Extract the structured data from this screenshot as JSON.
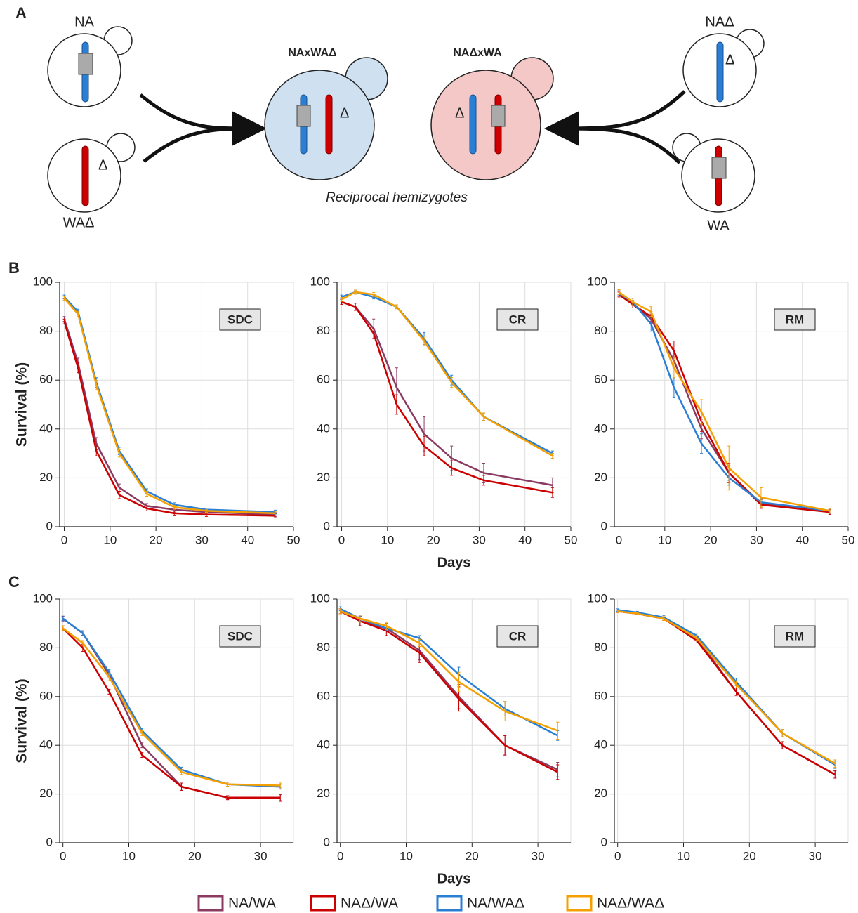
{
  "panels": {
    "b": "B",
    "c": "C"
  },
  "diagram": {
    "label": "A",
    "left_cells": [
      {
        "label": "NA"
      },
      {
        "label": "WAΔ",
        "mark": "Δ"
      }
    ],
    "hybrids": [
      {
        "label": "NAxWAΔ",
        "mark": "Δ"
      },
      {
        "label": "NAΔxWA",
        "mark": "Δ"
      }
    ],
    "right_cells": [
      {
        "label": "NAΔ",
        "mark": "Δ"
      },
      {
        "label": "WA"
      }
    ],
    "caption": "Reciprocal hemizygotes"
  },
  "legend": [
    {
      "name": "NA/WA",
      "color": "#8b3a62"
    },
    {
      "name": "NAΔ/WA",
      "color": "#cc0000"
    },
    {
      "name": "NA/WAΔ",
      "color": "#2a7fd4"
    },
    {
      "name": "NAΔ/WAΔ",
      "color": "#f5a000"
    }
  ],
  "chart_data": [
    {
      "type": "line",
      "condition": "SDC",
      "ylabel": "Survival (%)",
      "x": [
        0,
        3,
        7,
        12,
        18,
        24,
        31,
        46
      ],
      "xlim": [
        -1,
        50
      ],
      "xticks": [
        0,
        10,
        20,
        30,
        40,
        50
      ],
      "ylim": [
        0,
        100
      ],
      "yticks": [
        0,
        20,
        40,
        60,
        80,
        100
      ],
      "grid": true,
      "series": [
        {
          "values": [
            85,
            67,
            34,
            16,
            8.5,
            7,
            6,
            5
          ],
          "errors": [
            1,
            2,
            2.5,
            1.5,
            1,
            1,
            0.8,
            0.8
          ]
        },
        {
          "values": [
            84,
            65,
            31,
            13,
            7.5,
            5.5,
            5,
            4.5
          ],
          "errors": [
            1,
            2,
            2,
            1.5,
            1,
            1,
            0.8,
            0.8
          ]
        },
        {
          "values": [
            94,
            88,
            59,
            31,
            14.5,
            9,
            7,
            6
          ],
          "errors": [
            0.8,
            1,
            2,
            1.5,
            1,
            0.8,
            0.6,
            0.8
          ]
        },
        {
          "values": [
            93.5,
            87,
            58,
            30,
            13.5,
            8,
            6.5,
            5.5
          ],
          "errors": [
            0.8,
            1,
            2,
            1.5,
            1,
            0.8,
            0.6,
            0.8
          ]
        }
      ]
    },
    {
      "type": "line",
      "condition": "CR",
      "xlabel": "Days",
      "x": [
        0,
        3,
        7,
        12,
        18,
        24,
        31,
        46
      ],
      "xlim": [
        -1,
        50
      ],
      "xticks": [
        0,
        10,
        20,
        30,
        40,
        50
      ],
      "ylim": [
        0,
        100
      ],
      "yticks": [
        0,
        20,
        40,
        60,
        80,
        100
      ],
      "grid": true,
      "series": [
        {
          "values": [
            92,
            90,
            81,
            57,
            38,
            28,
            22,
            17
          ],
          "errors": [
            1,
            1.5,
            4,
            8,
            7,
            5,
            4,
            3
          ]
        },
        {
          "values": [
            92,
            90,
            79,
            50,
            33,
            24,
            19,
            14
          ],
          "errors": [
            1,
            1.5,
            2,
            4,
            4,
            3,
            2,
            2
          ]
        },
        {
          "values": [
            94,
            96,
            94,
            90,
            77,
            60,
            45,
            30
          ],
          "errors": [
            0.8,
            0.8,
            0.8,
            0.8,
            2.5,
            2,
            1.5,
            1
          ]
        },
        {
          "values": [
            93,
            96,
            95,
            90,
            76,
            59,
            45,
            29
          ],
          "errors": [
            0.8,
            0.8,
            0.8,
            0.8,
            2,
            2,
            1.5,
            1
          ]
        }
      ]
    },
    {
      "type": "line",
      "condition": "RM",
      "x": [
        0,
        3,
        7,
        12,
        18,
        24,
        31,
        46
      ],
      "xlim": [
        -1,
        50
      ],
      "xticks": [
        0,
        10,
        20,
        30,
        40,
        50
      ],
      "ylim": [
        0,
        100
      ],
      "yticks": [
        0,
        20,
        40,
        60,
        80,
        100
      ],
      "grid": true,
      "series": [
        {
          "values": [
            95.5,
            91,
            85,
            68,
            40,
            22,
            9.5,
            6
          ],
          "errors": [
            1,
            1.5,
            2,
            3,
            4,
            3,
            1.5,
            1
          ]
        },
        {
          "values": [
            95,
            91,
            86,
            72,
            43,
            22,
            9,
            6
          ],
          "errors": [
            1,
            1.5,
            2,
            4,
            4,
            4,
            1.5,
            1
          ]
        },
        {
          "values": [
            95.5,
            92,
            83,
            57,
            34,
            20,
            10,
            6.5
          ],
          "errors": [
            1,
            1.5,
            3,
            4,
            4,
            3,
            1.5,
            1
          ]
        },
        {
          "values": [
            96,
            92,
            88,
            65,
            47,
            24,
            12,
            6.5
          ],
          "errors": [
            1,
            1.5,
            2,
            4,
            5,
            9,
            4,
            1
          ]
        }
      ]
    },
    {
      "type": "line",
      "condition": "SDC",
      "ylabel": "Survival (%)",
      "x": [
        0,
        3,
        7,
        12,
        18,
        25,
        33
      ],
      "xlim": [
        -0.5,
        35
      ],
      "xticks": [
        0,
        10,
        20,
        30
      ],
      "ylim": [
        0,
        100
      ],
      "yticks": [
        0,
        20,
        40,
        60,
        80,
        100
      ],
      "grid": true,
      "series": [
        {
          "values": [
            92,
            86,
            69,
            40,
            23,
            18.5,
            18.5
          ],
          "errors": [
            1,
            1,
            1,
            1,
            1.5,
            0.8,
            1.2
          ]
        },
        {
          "values": [
            88,
            80,
            62,
            36,
            23,
            18.5,
            18.5
          ],
          "errors": [
            1,
            1.5,
            1,
            1,
            1.5,
            0.8,
            1.5
          ]
        },
        {
          "values": [
            92,
            86,
            70,
            46,
            30,
            24,
            23
          ],
          "errors": [
            0.8,
            0.8,
            1,
            1,
            1,
            0.8,
            1
          ]
        },
        {
          "values": [
            88,
            82,
            68,
            45,
            29,
            24,
            23.5
          ],
          "errors": [
            1,
            1,
            1.5,
            1,
            1,
            0.8,
            1
          ]
        }
      ]
    },
    {
      "type": "line",
      "condition": "CR",
      "xlabel": "Days",
      "x": [
        0,
        3,
        7,
        12,
        18,
        25,
        33
      ],
      "xlim": [
        -0.5,
        35
      ],
      "xticks": [
        0,
        10,
        20,
        30
      ],
      "ylim": [
        0,
        100
      ],
      "yticks": [
        0,
        20,
        40,
        60,
        80,
        100
      ],
      "grid": true,
      "series": [
        {
          "values": [
            95,
            91,
            88,
            79,
            60,
            40,
            30
          ],
          "errors": [
            1,
            2,
            2,
            4,
            5,
            4,
            3
          ]
        },
        {
          "values": [
            95,
            91,
            87,
            78,
            59,
            40,
            29
          ],
          "errors": [
            1,
            2,
            2,
            4,
            5,
            4,
            3
          ]
        },
        {
          "values": [
            96,
            92,
            88,
            84,
            69,
            55,
            44
          ],
          "errors": [
            0.8,
            1,
            1,
            1,
            3,
            3,
            2
          ]
        },
        {
          "values": [
            95,
            92,
            89,
            82,
            66,
            54,
            46
          ],
          "errors": [
            1,
            1.5,
            1.5,
            1.5,
            4,
            4,
            3.5
          ]
        }
      ]
    },
    {
      "type": "line",
      "condition": "RM",
      "x": [
        0,
        3,
        7,
        12,
        18,
        25,
        33
      ],
      "xlim": [
        -0.5,
        35
      ],
      "xticks": [
        0,
        10,
        20,
        30
      ],
      "ylim": [
        0,
        100
      ],
      "yticks": [
        0,
        20,
        40,
        60,
        80,
        100
      ],
      "grid": true,
      "series": [
        {
          "values": [
            95,
            94,
            92,
            84,
            62,
            40,
            28
          ],
          "errors": [
            0.5,
            0.5,
            0.8,
            1,
            1.5,
            1.5,
            1.5
          ]
        },
        {
          "values": [
            95,
            94,
            92,
            83,
            62,
            40,
            28
          ],
          "errors": [
            0.5,
            0.5,
            0.8,
            1,
            1.5,
            1.5,
            1.5
          ]
        },
        {
          "values": [
            95.5,
            94.5,
            92.5,
            85,
            66,
            45,
            32
          ],
          "errors": [
            0.5,
            0.5,
            0.8,
            1,
            1.5,
            1.5,
            1.5
          ]
        },
        {
          "values": [
            95,
            94,
            92,
            84,
            65,
            45,
            32.5
          ],
          "errors": [
            0.5,
            0.5,
            0.8,
            1,
            1.5,
            1.5,
            1.5
          ]
        }
      ]
    }
  ]
}
